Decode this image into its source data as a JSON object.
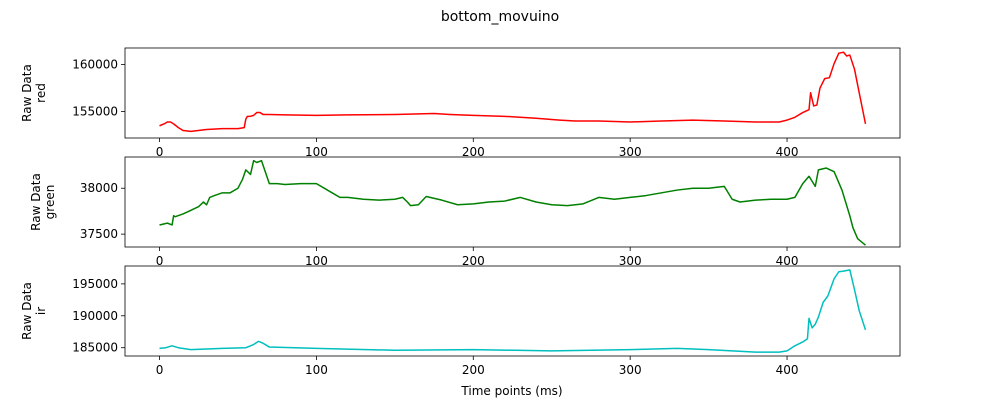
{
  "figure": {
    "title": "bottom_movuino",
    "xlabel": "Time points (ms)"
  },
  "chart_data": [
    {
      "type": "line",
      "ylabel_top": "Raw Data",
      "ylabel_bottom": "red",
      "color": "#ff0000",
      "xlim": [
        -22,
        472
      ],
      "ylim": [
        152200,
        161750
      ],
      "xticks": [
        0,
        100,
        200,
        300,
        400
      ],
      "yticks": [
        155000,
        160000
      ],
      "series": [
        {
          "x": [
            0,
            3,
            5,
            7,
            9,
            12,
            15,
            20,
            30,
            40,
            50,
            54,
            55,
            56,
            58,
            60,
            62,
            64,
            66,
            70,
            80,
            100,
            120,
            150,
            175,
            185,
            200,
            220,
            240,
            255,
            265,
            280,
            300,
            320,
            340,
            360,
            380,
            395,
            400,
            405,
            410,
            414,
            415,
            417,
            419,
            421,
            424,
            427,
            430,
            433,
            436,
            438,
            440,
            443,
            446,
            450
          ],
          "y": [
            153500,
            153700,
            153900,
            153900,
            153700,
            153300,
            153000,
            152900,
            153100,
            153200,
            153200,
            153300,
            154200,
            154500,
            154500,
            154600,
            154900,
            154900,
            154700,
            154700,
            154650,
            154600,
            154650,
            154700,
            154800,
            154700,
            154600,
            154500,
            154300,
            154100,
            154000,
            154000,
            153900,
            154000,
            154100,
            154000,
            153900,
            153900,
            154100,
            154400,
            154900,
            155200,
            157000,
            155600,
            155700,
            157500,
            158500,
            158600,
            160100,
            161200,
            161300,
            160900,
            161000,
            159500,
            157000,
            153700
          ]
        }
      ]
    },
    {
      "type": "line",
      "ylabel_top": "Raw Data",
      "ylabel_bottom": "green",
      "color": "#008000",
      "xlim": [
        -22,
        472
      ],
      "ylim": [
        37360,
        38340
      ],
      "xticks": [
        0,
        100,
        200,
        300,
        400
      ],
      "yticks": [
        37500,
        38000
      ],
      "series": [
        {
          "x": [
            0,
            5,
            8,
            9,
            10,
            15,
            20,
            25,
            28,
            30,
            32,
            35,
            40,
            45,
            50,
            53,
            55,
            58,
            60,
            62,
            65,
            67,
            70,
            75,
            80,
            90,
            100,
            110,
            115,
            120,
            130,
            140,
            150,
            155,
            158,
            160,
            165,
            170,
            180,
            190,
            200,
            210,
            220,
            230,
            240,
            250,
            260,
            270,
            280,
            290,
            300,
            310,
            320,
            330,
            340,
            350,
            360,
            365,
            370,
            380,
            390,
            400,
            405,
            410,
            414,
            418,
            420,
            425,
            430,
            435,
            440,
            442,
            445,
            450
          ],
          "y": [
            37600,
            37620,
            37600,
            37700,
            37690,
            37720,
            37760,
            37800,
            37850,
            37820,
            37900,
            37920,
            37950,
            37950,
            38000,
            38100,
            38200,
            38150,
            38300,
            38280,
            38300,
            38200,
            38050,
            38050,
            38040,
            38050,
            38050,
            37950,
            37900,
            37900,
            37880,
            37870,
            37880,
            37900,
            37850,
            37810,
            37820,
            37910,
            37870,
            37820,
            37830,
            37850,
            37860,
            37900,
            37850,
            37820,
            37810,
            37830,
            37900,
            37880,
            37900,
            37920,
            37950,
            37980,
            38000,
            38000,
            38020,
            37880,
            37850,
            37870,
            37880,
            37880,
            37900,
            38050,
            38130,
            38020,
            38200,
            38220,
            38180,
            37980,
            37700,
            37570,
            37450,
            37380
          ]
        }
      ]
    },
    {
      "type": "line",
      "ylabel_top": "Raw Data",
      "ylabel_bottom": "ir",
      "color": "#00bfbf",
      "xlim": [
        -22,
        472
      ],
      "ylim": [
        183700,
        197800
      ],
      "xticks": [
        0,
        100,
        200,
        300,
        400
      ],
      "yticks": [
        185000,
        190000,
        195000
      ],
      "series": [
        {
          "x": [
            0,
            4,
            8,
            12,
            20,
            40,
            55,
            60,
            63,
            66,
            70,
            100,
            150,
            200,
            250,
            300,
            330,
            350,
            380,
            395,
            400,
            405,
            410,
            413,
            414,
            416,
            418,
            420,
            423,
            426,
            430,
            433,
            436,
            440,
            443,
            446,
            450
          ],
          "y": [
            184900,
            185000,
            185300,
            185000,
            184700,
            184900,
            185000,
            185500,
            186000,
            185700,
            185100,
            184900,
            184600,
            184700,
            184500,
            184700,
            184900,
            184700,
            184300,
            184300,
            184500,
            185300,
            185900,
            186400,
            189600,
            188100,
            188700,
            189800,
            192100,
            193100,
            195800,
            196900,
            197000,
            197200,
            194100,
            190800,
            187800
          ]
        }
      ]
    }
  ]
}
